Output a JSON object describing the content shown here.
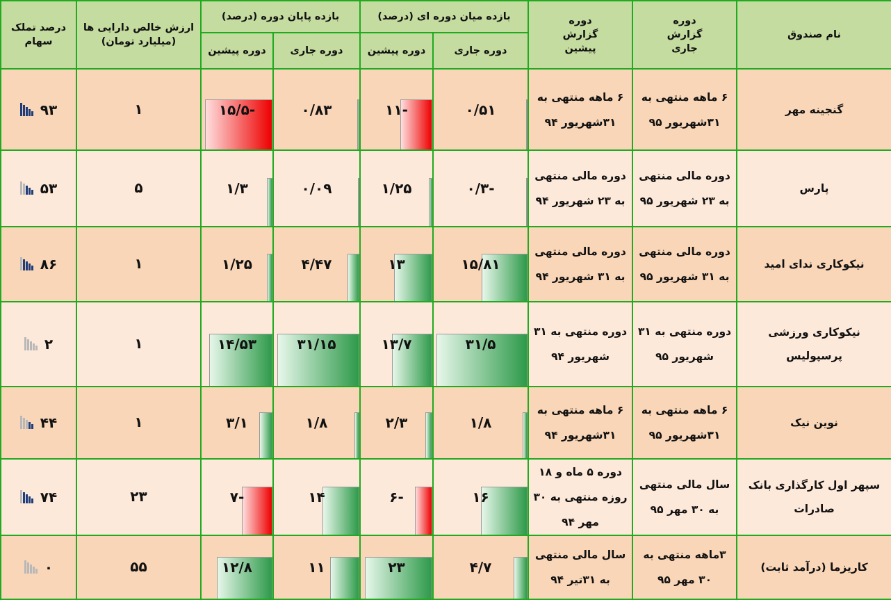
{
  "headers": {
    "fund_name": "نام صندوق",
    "current_period": "دوره گزارش جاری",
    "previous_period": "دوره گزارش پیشین",
    "interim_return": "بازده میان دوره ای (درصد)",
    "end_return": "بازده پایان دوره (درصد)",
    "nav": "ارزش خالص دارایی ها (میلیارد تومان)",
    "ownership": "درصد تملک سهام",
    "sub_current": "دوره جاری",
    "sub_previous": "دوره پیشین"
  },
  "colors": {
    "header_bg": "#c5dca0",
    "border": "#1faa1f",
    "row_dark": "#f9d6b8",
    "row_light": "#fde9da",
    "bar_positive": "#2e9a4a",
    "bar_negative": "#ee0000"
  },
  "rows": [
    {
      "fund": "گنجینه مهر",
      "current_period": "۶ ماهه منتهی به ۳۱شهریور ۹۵",
      "previous_period": "۶ ماهه منتهی به ۳۱شهریور ۹۴",
      "interim_current": "۰/۵۱",
      "interim_current_val": 0.51,
      "interim_previous": "-۱۱",
      "interim_previous_val": -11,
      "end_current": "۰/۸۳",
      "end_current_val": 0.83,
      "end_previous": "-۱۵/۵",
      "end_previous_val": -15.5,
      "nav": "۱",
      "ownership": "۹۳",
      "ownership_val": 93
    },
    {
      "fund": "پارس",
      "current_period": "دوره مالی منتهی به ۲۳ شهریور ۹۵",
      "previous_period": "دوره مالی منتهی به ۲۳ شهریور ۹۴",
      "interim_current": "-۰/۳",
      "interim_current_val": -0.3,
      "interim_previous": "۱/۲۵",
      "interim_previous_val": 1.25,
      "end_current": "۰/۰۹",
      "end_current_val": 0.09,
      "end_previous": "۱/۳",
      "end_previous_val": 1.3,
      "nav": "۵",
      "ownership": "۵۳",
      "ownership_val": 53
    },
    {
      "fund": "نیکوکاری ندای امید",
      "current_period": "دوره مالی منتهی به ۳۱ شهریور ۹۵",
      "previous_period": "دوره مالی منتهی به ۳۱ شهریور ۹۴",
      "interim_current": "۱۵/۸۱",
      "interim_current_val": 15.81,
      "interim_previous": "۱۳",
      "interim_previous_val": 13,
      "end_current": "۴/۴۷",
      "end_current_val": 4.47,
      "end_previous": "۱/۲۵",
      "end_previous_val": 1.25,
      "nav": "۱",
      "ownership": "۸۶",
      "ownership_val": 86
    },
    {
      "fund": "نیکوکاری ورزشی پرسپولیس",
      "current_period": "دوره منتهی به ۳۱ شهریور ۹۵",
      "previous_period": "دوره منتهی به ۳۱ شهریور ۹۴",
      "interim_current": "۳۱/۵",
      "interim_current_val": 31.5,
      "interim_previous": "۱۳/۷",
      "interim_previous_val": 13.7,
      "end_current": "۳۱/۱۵",
      "end_current_val": 31.15,
      "end_previous": "۱۴/۵۳",
      "end_previous_val": 14.53,
      "nav": "۱",
      "ownership": "۲",
      "ownership_val": 2
    },
    {
      "fund": "نوین نیک",
      "current_period": "۶ ماهه منتهی به ۳۱شهریور ۹۵",
      "previous_period": "۶ ماهه منتهی به ۳۱شهریور ۹۴",
      "interim_current": "۱/۸",
      "interim_current_val": 1.8,
      "interim_previous": "۲/۳",
      "interim_previous_val": 2.3,
      "end_current": "۱/۸",
      "end_current_val": 1.8,
      "end_previous": "۳/۱",
      "end_previous_val": 3.1,
      "nav": "۱",
      "ownership": "۴۴",
      "ownership_val": 44
    },
    {
      "fund": "سپهر اول کارگذاری بانک صادرات",
      "current_period": "سال مالی منتهی به ۳۰ مهر ۹۵",
      "previous_period": "دوره ۵ ماه و ۱۸ روزه منتهی به ۳۰ مهر ۹۴",
      "interim_current": "۱۶",
      "interim_current_val": 16,
      "interim_previous": "-۶",
      "interim_previous_val": -6,
      "end_current": "۱۴",
      "end_current_val": 14,
      "end_previous": "-۷",
      "end_previous_val": -7,
      "nav": "۲۳",
      "ownership": "۷۴",
      "ownership_val": 74
    },
    {
      "fund": "کاریزما (درآمد ثابت)",
      "current_period": "۳ماهه منتهی به ۳۰ مهر ۹۵",
      "previous_period": "سال مالی منتهی به ۳۱تیر ۹۴",
      "interim_current": "۴/۷",
      "interim_current_val": 4.7,
      "interim_previous": "۲۳",
      "interim_previous_val": 23,
      "end_current": "۱۱",
      "end_current_val": 11,
      "end_previous": "۱۲/۸",
      "end_previous_val": 12.8,
      "nav": "۵۵",
      "ownership": "۰",
      "ownership_val": 0
    }
  ]
}
